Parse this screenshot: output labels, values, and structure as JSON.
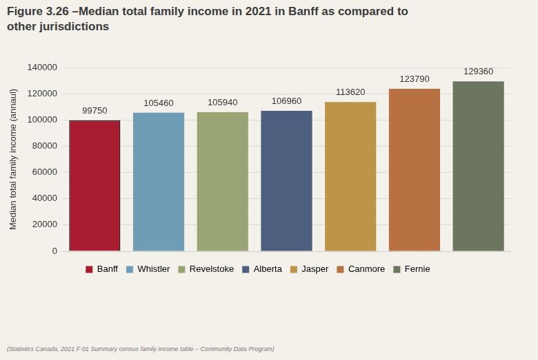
{
  "chart_data": {
    "type": "bar",
    "title": "Figure 3.26 –Median total family income in 2021 in Banff as compared to other jurisdictions",
    "ylabel": "Median total family income (annaul)",
    "source": "(Statistics Canada, 2021 F-01 Summary census family income table – Community Data Program)",
    "categories": [
      "Banff",
      "Whistler",
      "Revelstoke",
      "Alberta",
      "Jasper",
      "Canmore",
      "Fernie"
    ],
    "values": [
      99750,
      105460,
      105940,
      106960,
      113620,
      123790,
      129360
    ],
    "colors": [
      "#a81c30",
      "#6f9db5",
      "#9aa575",
      "#4c5f7f",
      "#bc9549",
      "#b87242",
      "#6b7560"
    ],
    "ylim": [
      0,
      140000
    ],
    "yticks": [
      0,
      20000,
      40000,
      60000,
      80000,
      100000,
      120000,
      140000
    ],
    "grid": true,
    "data_labels": true,
    "tick_labels": "y",
    "legend": "bottom"
  }
}
